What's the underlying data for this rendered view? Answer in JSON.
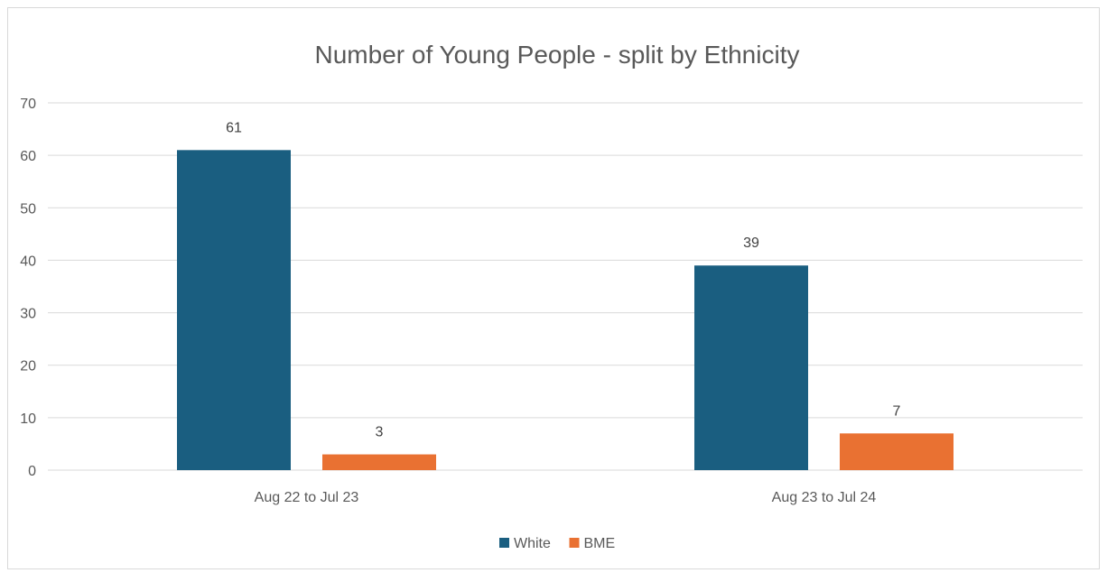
{
  "chart_data": {
    "type": "bar",
    "title": "Number of Young People - split by Ethnicity",
    "categories": [
      "Aug 22 to Jul 23",
      "Aug 23 to Jul 24"
    ],
    "series": [
      {
        "name": "White",
        "values": [
          61,
          39
        ],
        "color": "#1a5e80"
      },
      {
        "name": "BME",
        "values": [
          3,
          7
        ],
        "color": "#e97132"
      }
    ],
    "ylim": [
      0,
      70
    ],
    "yticks": [
      0,
      10,
      20,
      30,
      40,
      50,
      60,
      70
    ],
    "grid": true,
    "legend": "bottom",
    "data_labels": true
  },
  "colors": {
    "gridline": "#d9d9d9",
    "axis_text": "#595959",
    "title": "#595959"
  }
}
